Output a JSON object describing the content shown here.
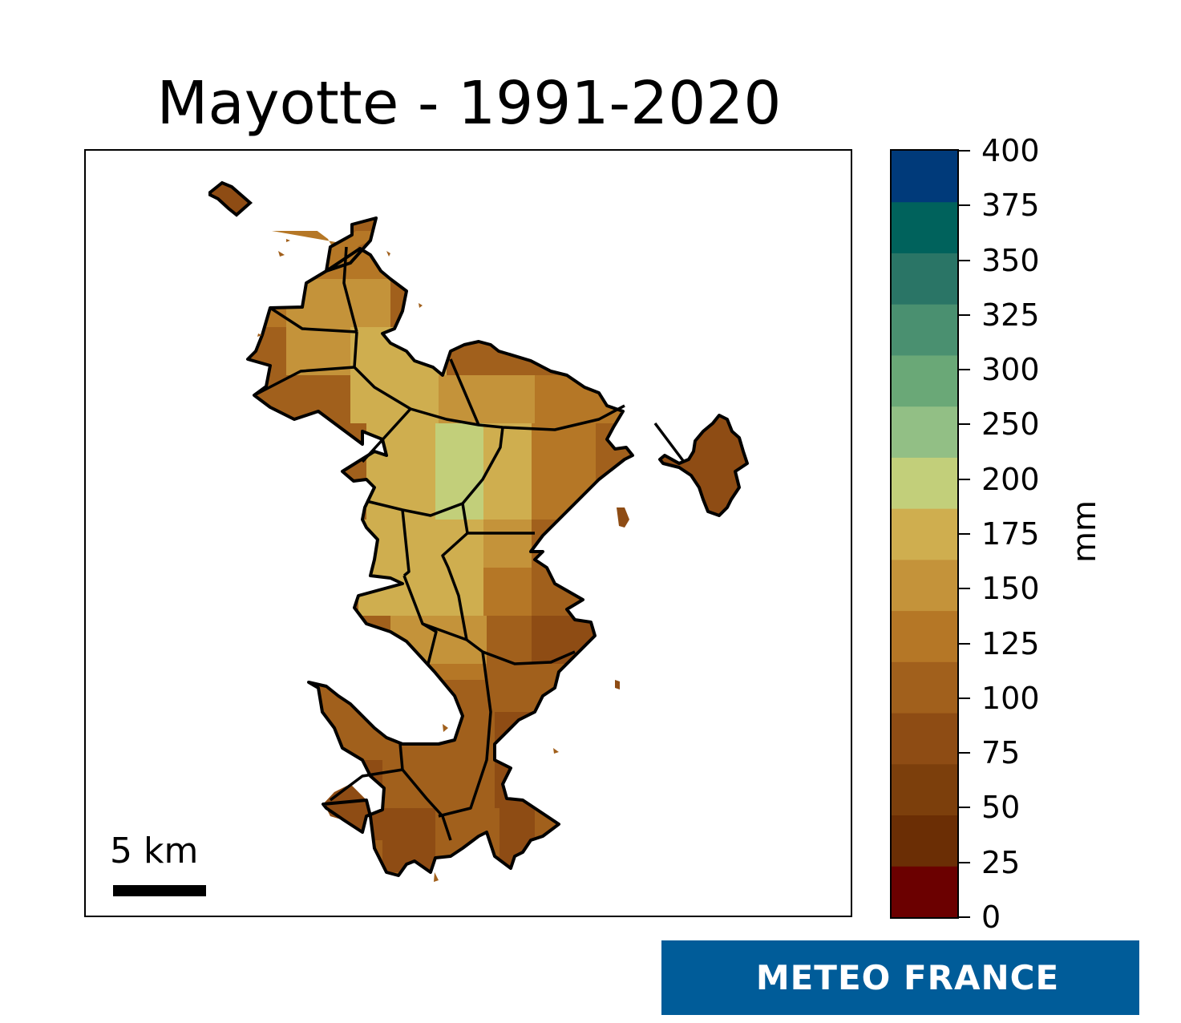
{
  "title": "Mayotte - 1991-2020",
  "scalebar": {
    "label": "5 km"
  },
  "colorbar": {
    "unit": "mm",
    "ticks": [
      "0",
      "25",
      "50",
      "75",
      "100",
      "125",
      "150",
      "175",
      "200",
      "250",
      "300",
      "325",
      "350",
      "375",
      "400"
    ],
    "colors": [
      "#6b0000",
      "#6b2e05",
      "#7c3f0c",
      "#8e4c14",
      "#a1601c",
      "#b57726",
      "#c4933a",
      "#cfae4f",
      "#c2cf7a",
      "#92bf85",
      "#6aa877",
      "#4a9070",
      "#2a7566",
      "#00625c",
      "#003a7a"
    ]
  },
  "logo": {
    "text": "METEO FRANCE"
  },
  "colors": {
    "boundary": "#000000",
    "logo_bg": "#005c99"
  }
}
